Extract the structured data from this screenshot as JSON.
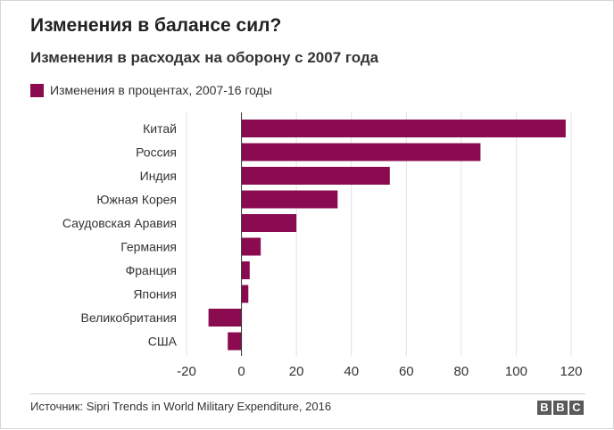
{
  "header": {
    "title": "Изменения в балансе сил?",
    "subtitle": "Изменения в расходах на оборону с 2007 года"
  },
  "legend": {
    "label": "Изменения в процентах, 2007-16 годы",
    "color": "#8a0b4f"
  },
  "footer": {
    "source": "Источник: Sipri Trends in World Military Expenditure, 2016",
    "logo_letters": [
      "B",
      "B",
      "C"
    ]
  },
  "chart_data": {
    "type": "bar",
    "orientation": "horizontal",
    "categories": [
      "Китай",
      "Россия",
      "Индия",
      "Южная Корея",
      "Саудовская Аравия",
      "Германия",
      "Франция",
      "Япония",
      "Великобритания",
      "США"
    ],
    "series": [
      {
        "name": "Изменения в процентах, 2007-16 годы",
        "values": [
          118,
          87,
          54,
          35,
          20,
          7,
          3,
          2.5,
          -12,
          -5
        ],
        "color": "#8a0b4f"
      }
    ],
    "xlim": [
      -20,
      125
    ],
    "xticks": [
      -20,
      0,
      20,
      40,
      60,
      80,
      100,
      120
    ],
    "grid": true,
    "legend_position": "top-left"
  }
}
